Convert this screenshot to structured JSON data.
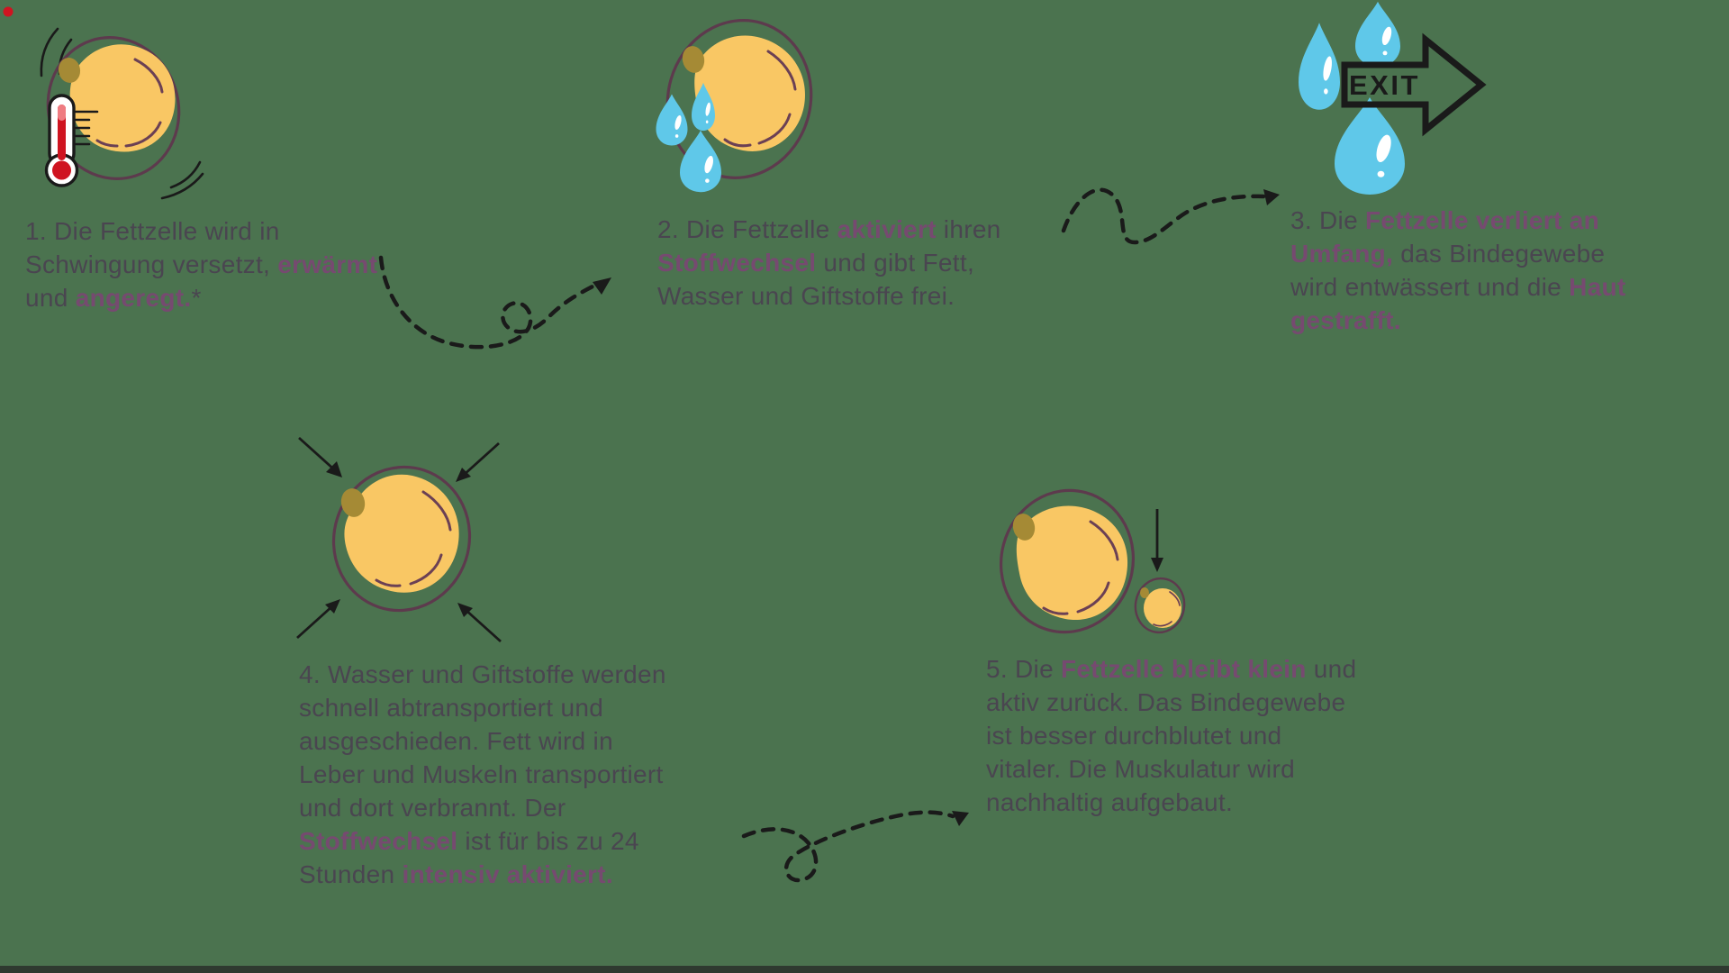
{
  "colors": {
    "bg": "#4b734f",
    "text": "#4a4550",
    "hl": "#764a70",
    "outline": "#5d3a4d",
    "fill": "#f9c764",
    "accent": "#6b4054",
    "nucleus": "#a58a35",
    "drop": "#5fc8e9",
    "red": "#cf1421",
    "black": "#1a1a1a",
    "bar": "#2f3a30"
  },
  "steps": [
    {
      "number": "1",
      "icon": "fat-cell-vibrating-thermometer-icon",
      "lines": [
        [
          {
            "t": "1. Die Fettzelle wird in"
          }
        ],
        [
          {
            "t": "Schwingung versetzt, "
          },
          {
            "t": "erwärmt",
            "hl": true
          }
        ],
        [
          {
            "t": "und "
          },
          {
            "t": "angeregt.",
            "hl": true
          },
          {
            "t": "*"
          }
        ]
      ]
    },
    {
      "number": "2",
      "icon": "fat-cell-releasing-drops-icon",
      "lines": [
        [
          {
            "t": "2. Die Fettzelle "
          },
          {
            "t": "aktiviert",
            "hl": true
          },
          {
            "t": " ihren"
          }
        ],
        [
          {
            "t": "Stoffwechsel",
            "hl": true
          },
          {
            "t": " und gibt Fett,"
          }
        ],
        [
          {
            "t": "Wasser und Giftstoffe frei."
          }
        ]
      ]
    },
    {
      "number": "3",
      "icon": "water-drops-exit-arrow-icon",
      "icon_label": "EXIT",
      "lines": [
        [
          {
            "t": "3. Die "
          },
          {
            "t": "Fettzelle verliert an",
            "hl": true
          }
        ],
        [
          {
            "t": "Umfang,",
            "hl": true
          },
          {
            "t": " das Bindegewebe"
          }
        ],
        [
          {
            "t": "wird entwässert und die "
          },
          {
            "t": "Haut",
            "hl": true
          }
        ],
        [
          {
            "t": "gestrafft.",
            "hl": true
          }
        ]
      ]
    },
    {
      "number": "4",
      "icon": "fat-cell-compressed-arrows-icon",
      "lines": [
        [
          {
            "t": "4. Wasser und Giftstoffe werden"
          }
        ],
        [
          {
            "t": "schnell abtransportiert und"
          }
        ],
        [
          {
            "t": "ausgeschieden. Fett wird in"
          }
        ],
        [
          {
            "t": "Leber und Muskeln transportiert"
          }
        ],
        [
          {
            "t": "und dort verbrannt. Der"
          }
        ],
        [
          {
            "t": "Stoffwechsel",
            "hl": true
          },
          {
            "t": " ist für bis zu 24"
          }
        ],
        [
          {
            "t": "Stunden "
          },
          {
            "t": "intensiv aktiviert.",
            "hl": true
          }
        ]
      ]
    },
    {
      "number": "5",
      "icon": "big-and-small-fat-cell-icon",
      "lines": [
        [
          {
            "t": "5. Die "
          },
          {
            "t": "Fettzelle bleibt klein",
            "hl": true
          },
          {
            "t": " und"
          }
        ],
        [
          {
            "t": "aktiv zurück. Das Bindegewebe"
          }
        ],
        [
          {
            "t": "ist besser durchblutet und"
          }
        ],
        [
          {
            "t": "vitaler. Die Muskulatur wird"
          }
        ],
        [
          {
            "t": "nachhaltig aufgebaut."
          }
        ]
      ]
    }
  ],
  "connectors": [
    {
      "name": "dashed-loop-arrow-step1-to-step2"
    },
    {
      "name": "dashed-wave-arrow-step2-to-step3"
    },
    {
      "name": "dashed-loop-arrow-step4-to-step5"
    }
  ]
}
